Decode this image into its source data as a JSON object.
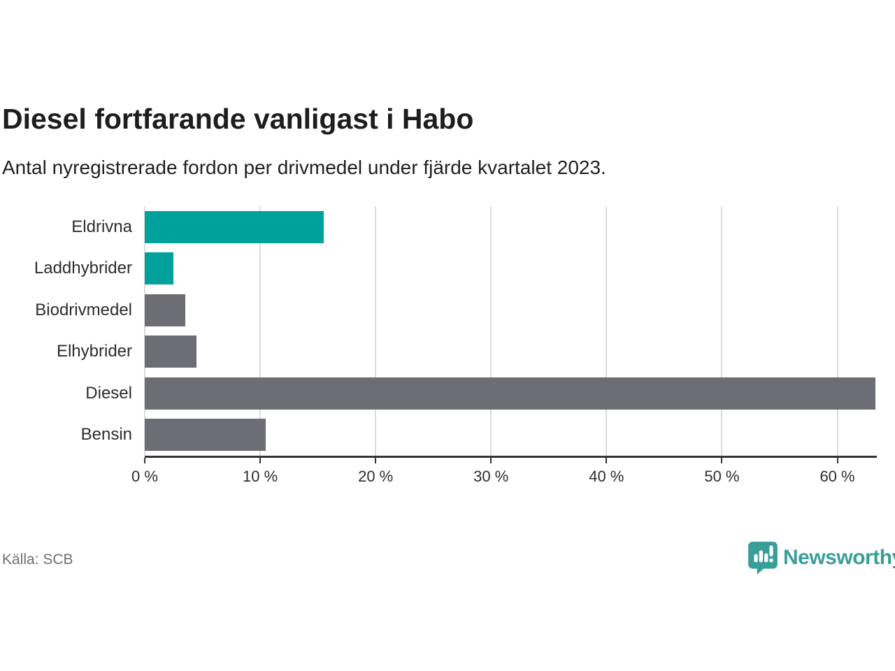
{
  "header": {
    "title": "Diesel fortfarande vanligast i Habo",
    "subtitle": "Antal nyregistrerade fordon per drivmedel under fjärde kvartalet 2023."
  },
  "footer": {
    "source": "Källa: SCB",
    "brand": "Newsworthy"
  },
  "colors": {
    "teal": "#00a09b",
    "gray": "#6c6d75",
    "brand_teal": "#3a9e98",
    "grid": "#dcdcdc",
    "axis": "#333333"
  },
  "chart_data": {
    "type": "bar",
    "orientation": "horizontal",
    "title": "Diesel fortfarande vanligast i Habo",
    "subtitle": "Antal nyregistrerade fordon per drivmedel under fjärde kvartalet 2023.",
    "categories": [
      "Eldrivna",
      "Laddhybrider",
      "Biodrivmedel",
      "Elhybrider",
      "Diesel",
      "Bensin"
    ],
    "values": [
      15.5,
      2.5,
      3.5,
      4.5,
      63.3,
      10.5
    ],
    "unit": "%",
    "bar_colors": [
      "#00a09b",
      "#00a09b",
      "#6c6d75",
      "#6c6d75",
      "#6c6d75",
      "#6c6d75"
    ],
    "xlim": [
      0,
      63.3
    ],
    "x_ticks": [
      0,
      10,
      20,
      30,
      40,
      50,
      60
    ],
    "x_tick_labels": [
      "0 %",
      "10 %",
      "20 %",
      "30 %",
      "40 %",
      "50 %",
      "60 %"
    ],
    "grid": true,
    "legend_position": "none",
    "source": "Källa: SCB"
  }
}
